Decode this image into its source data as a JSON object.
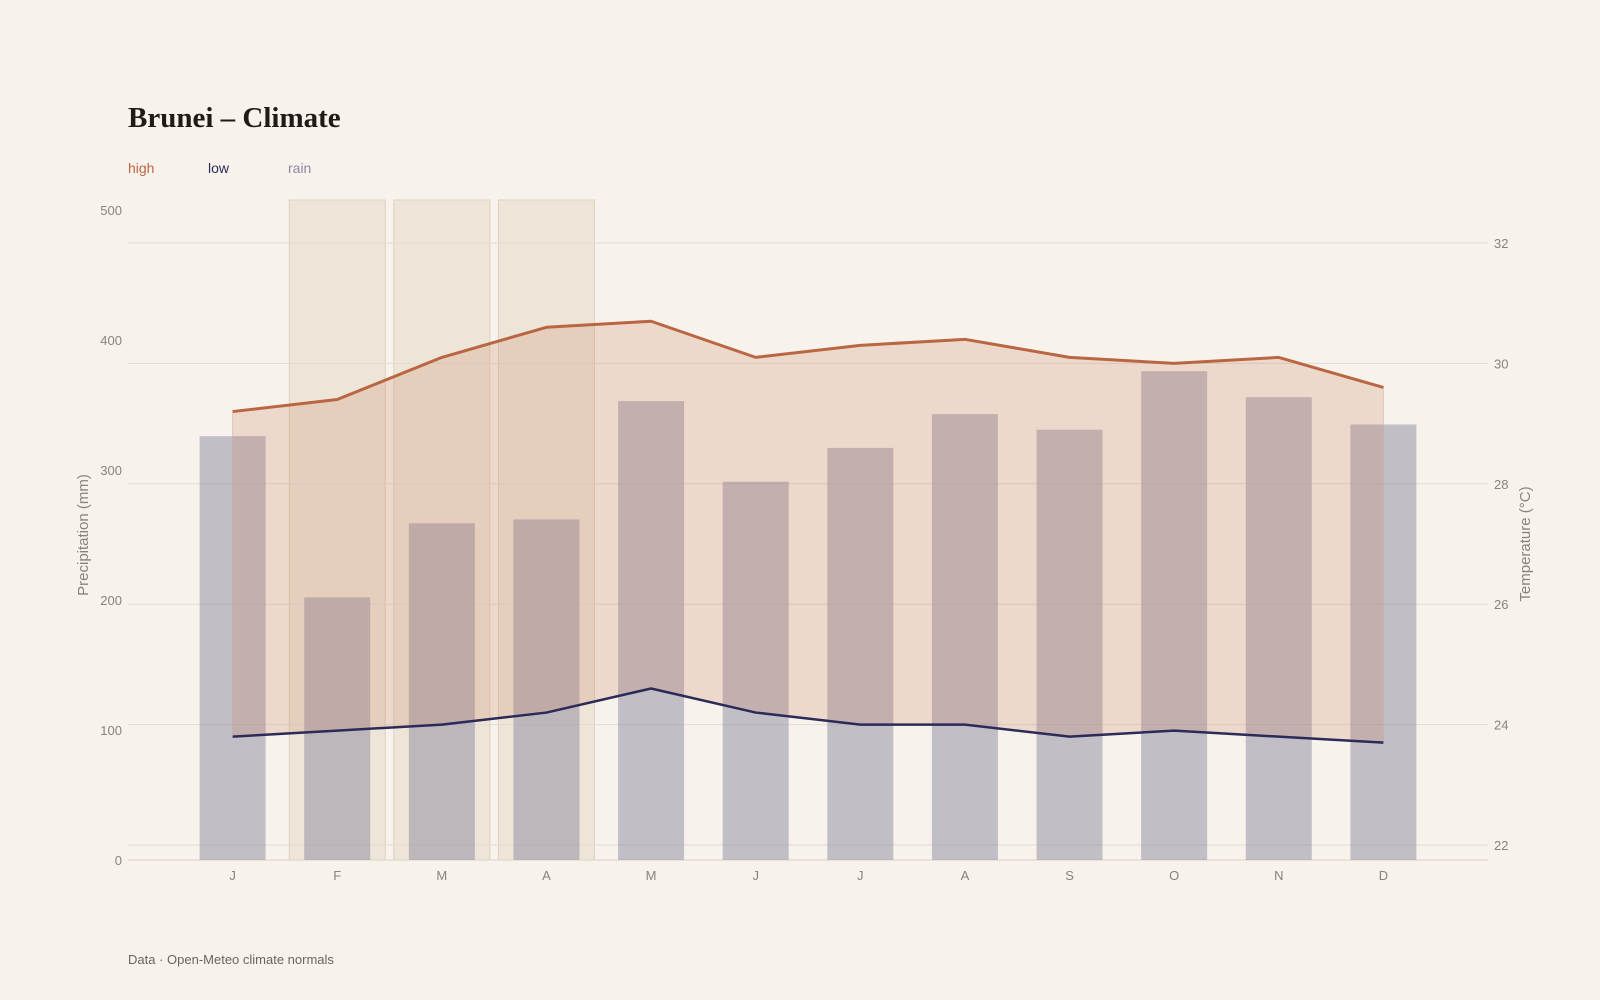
{
  "title": "Brunei – Climate",
  "legend": {
    "high": "high",
    "low": "low",
    "rain": "rain"
  },
  "footer": "Data · Open-Meteo climate normals",
  "colors": {
    "background": "#f7f2ec",
    "high": "#bb6643",
    "low": "#2b2a58",
    "rain": "#8e8aa0",
    "band_fill": "#c97f5a",
    "highlight": "#e6dccb"
  },
  "chart_data": {
    "type": "bar",
    "categories": [
      "J",
      "F",
      "M",
      "A",
      "M",
      "J",
      "J",
      "A",
      "S",
      "O",
      "N",
      "D"
    ],
    "highlighted_indices": [
      1,
      2,
      3
    ],
    "series": [
      {
        "name": "rain",
        "type": "bar",
        "axis": "left",
        "values": [
          326,
          202,
          259,
          262,
          353,
          291,
          317,
          343,
          331,
          376,
          356,
          335
        ]
      },
      {
        "name": "high",
        "type": "line",
        "axis": "right",
        "values": [
          29.2,
          29.4,
          30.1,
          30.6,
          30.7,
          30.1,
          30.3,
          30.4,
          30.1,
          30.0,
          30.1,
          29.6
        ]
      },
      {
        "name": "low",
        "type": "line",
        "axis": "right",
        "values": [
          23.8,
          23.9,
          24.0,
          24.2,
          24.6,
          24.2,
          24.0,
          24.0,
          23.8,
          23.9,
          23.8,
          23.7
        ]
      }
    ],
    "y_left": {
      "label": "Precipitation (mm)",
      "ticks": [
        0,
        100,
        200,
        300,
        400,
        500
      ],
      "range": [
        0,
        500
      ]
    },
    "y_right": {
      "label": "Temperature (°C)",
      "ticks": [
        22,
        24,
        26,
        28,
        30,
        32
      ],
      "range": [
        21.7,
        32.6
      ]
    },
    "grid": true
  }
}
